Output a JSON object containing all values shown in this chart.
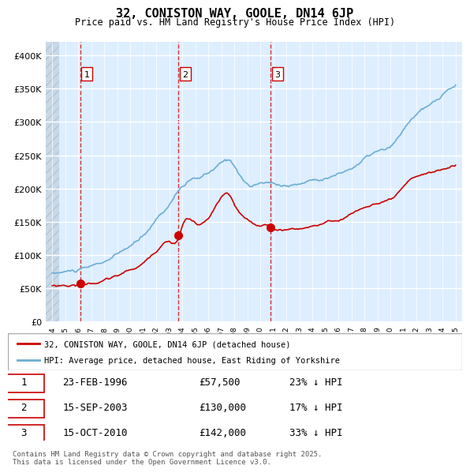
{
  "title": "32, CONISTON WAY, GOOLE, DN14 6JP",
  "subtitle": "Price paid vs. HM Land Registry's House Price Index (HPI)",
  "sale_label1": "1",
  "sale_date1": "23-FEB-1996",
  "sale_price1": 57500,
  "sale_pct1": "23% ↓ HPI",
  "sale_year1": 1996.14,
  "sale_label2": "2",
  "sale_date2": "15-SEP-2003",
  "sale_price2": 130000,
  "sale_pct2": "17% ↓ HPI",
  "sale_year2": 2003.71,
  "sale_label3": "3",
  "sale_date3": "15-OCT-2010",
  "sale_price3": 142000,
  "sale_pct3": "33% ↓ HPI",
  "sale_year3": 2010.79,
  "legend_label1": "32, CONISTON WAY, GOOLE, DN14 6JP (detached house)",
  "legend_label2": "HPI: Average price, detached house, East Riding of Yorkshire",
  "footnote": "Contains HM Land Registry data © Crown copyright and database right 2025.\nThis data is licensed under the Open Government Licence v3.0.",
  "hpi_color": "#6baed6",
  "price_color": "#cc0000",
  "vline_color": "#cc0000",
  "background_chart": "#ddeeff",
  "background_hatch": "#c8d8e8",
  "grid_color": "#ffffff",
  "ylim_max": 420000,
  "xlim_min": 1994,
  "xlim_max": 2025.5
}
